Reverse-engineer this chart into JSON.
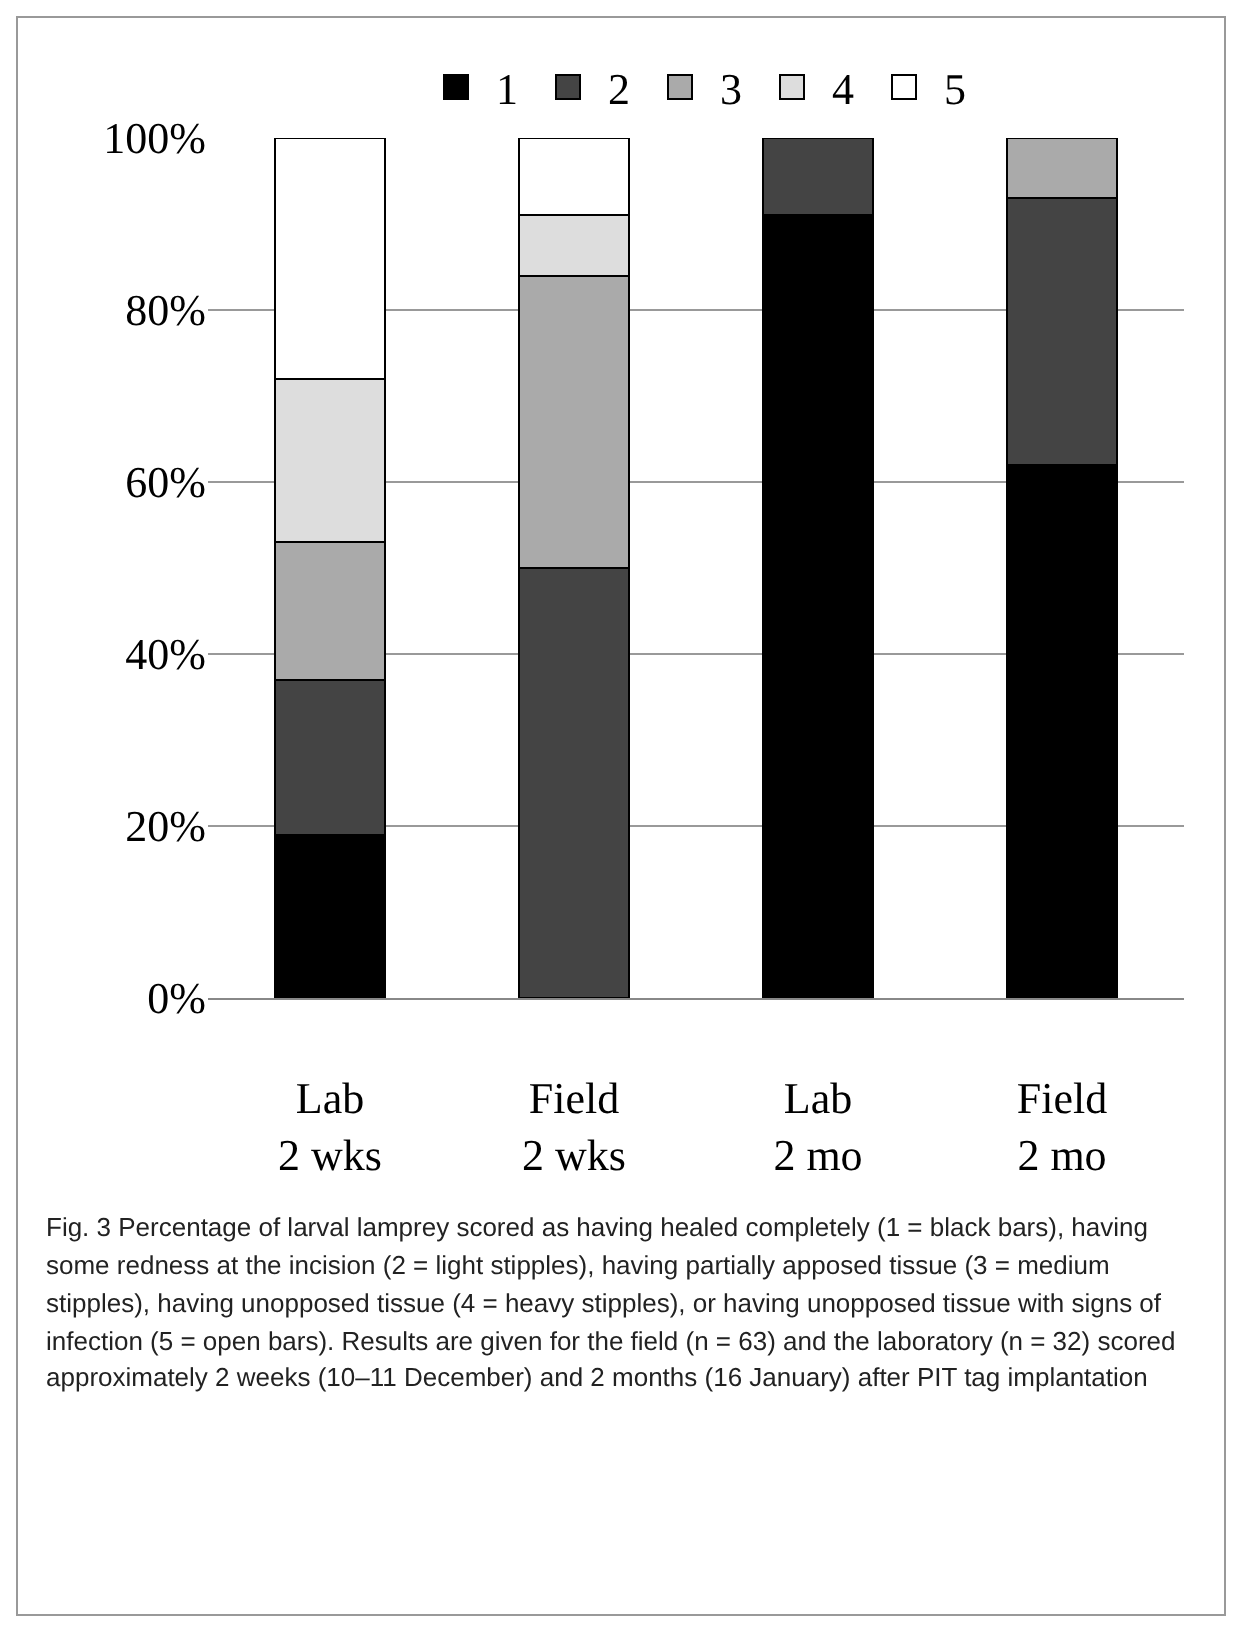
{
  "chart_data": {
    "type": "bar",
    "stacked": true,
    "categories": [
      "Lab\n2 wks",
      "Field\n2 wks",
      "Lab\n2 mo",
      "Field\n2 mo"
    ],
    "series": [
      {
        "name": "1",
        "color": "#000000",
        "values": [
          19,
          0,
          91,
          62
        ]
      },
      {
        "name": "2",
        "color": "#444444",
        "values": [
          18,
          50,
          9,
          31
        ]
      },
      {
        "name": "3",
        "color": "#aaaaaa",
        "values": [
          16,
          34,
          0,
          7
        ]
      },
      {
        "name": "4",
        "color": "#dddddd",
        "values": [
          19,
          7,
          0,
          0
        ]
      },
      {
        "name": "5",
        "color": "#ffffff",
        "values": [
          28,
          9,
          0,
          0
        ]
      }
    ],
    "ylim": [
      0,
      100
    ],
    "yticks": [
      {
        "value": 0,
        "label": "0%"
      },
      {
        "value": 20,
        "label": "20%"
      },
      {
        "value": 40,
        "label": "40%"
      },
      {
        "value": 60,
        "label": "60%"
      },
      {
        "value": 80,
        "label": "80%"
      },
      {
        "value": 100,
        "label": "100%"
      }
    ],
    "grid": "y",
    "legend": "top",
    "annotations": [
      "Fig. 3  Percentage of larval lamprey scored as having healed completely (1 = black bars), having some redness at the incision (2 = light stipples), having partially apposed tissue (3 = medium stipples), having unopposed tissue (4 = heavy stipples), or having unopposed tissue with signs of infection (5 = open bars). Results are given for the field (n = 63) and the laboratory (n = 32) scored approximately 2 weeks (10–11 December) and 2 months (16 January) after PIT tag implantation"
    ]
  }
}
